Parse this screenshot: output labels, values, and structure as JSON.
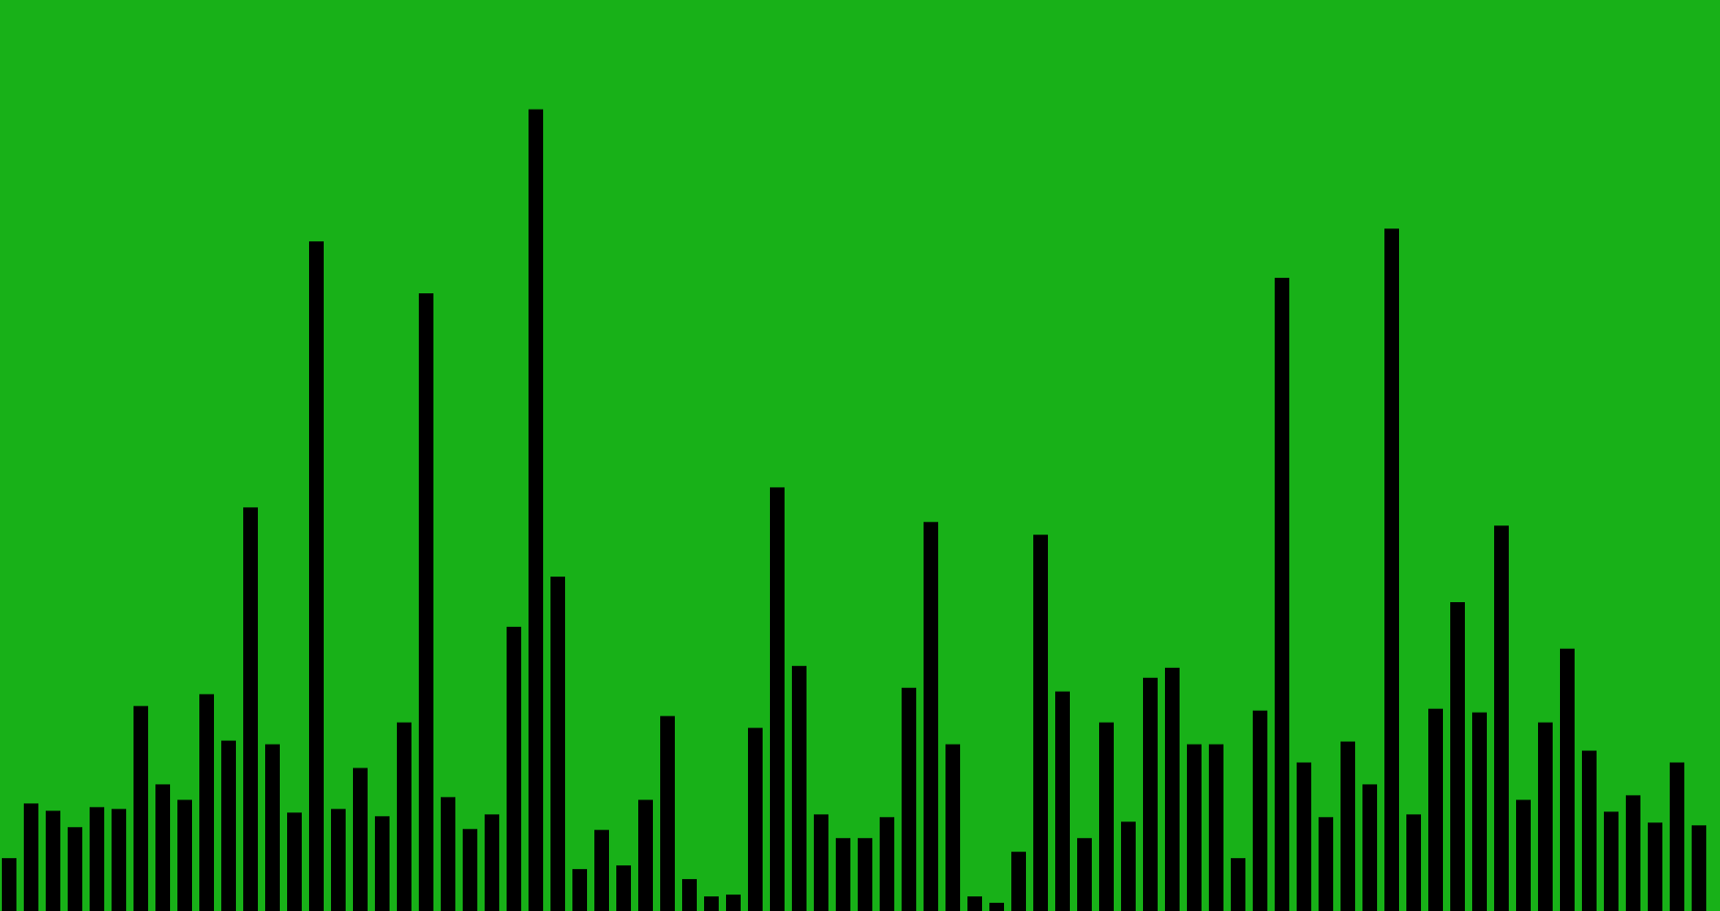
{
  "colors": {
    "background": "#18b118",
    "bar": "#000000"
  },
  "chart_data": {
    "type": "bar",
    "title": "",
    "xlabel": "",
    "ylabel": "",
    "ylim": [
      0,
      1000
    ],
    "grid": false,
    "legend": "none",
    "values": [
      58,
      118,
      110,
      92,
      114,
      112,
      225,
      139,
      122,
      238,
      187,
      443,
      183,
      108,
      735,
      112,
      157,
      104,
      207,
      678,
      125,
      90,
      106,
      312,
      880,
      367,
      46,
      89,
      50,
      122,
      214,
      35,
      16,
      18,
      201,
      465,
      269,
      106,
      80,
      80,
      103,
      245,
      427,
      183,
      16,
      9,
      65,
      413,
      241,
      80,
      207,
      98,
      256,
      267,
      183,
      183,
      58,
      220,
      695,
      163,
      103,
      186,
      139,
      749,
      106,
      222,
      339,
      218,
      423,
      122,
      207,
      288,
      176,
      109,
      127,
      97,
      163,
      94
    ]
  }
}
